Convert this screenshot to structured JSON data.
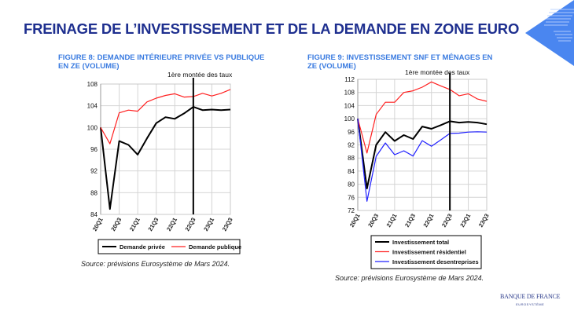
{
  "slide": {
    "title": "FREINAGE DE L’INVESTISSEMENT ET DE LA DEMANDE EN ZONE EURO",
    "logo_text": "BANQUE DE FRANCE",
    "logo_subtext": "EUROSYSTÈME",
    "accent_color": "#4a86f0"
  },
  "chart_data": [
    {
      "type": "line",
      "title": "FIGURE 8: DEMANDE INTÉRIEURE PRIVÉE VS PUBLIQUE EN ZE (VOLUME)",
      "annotation": "1ère montée des taux",
      "annotation_sup": "ère",
      "annotation_at": "22Q3",
      "source": "Source: prévisions Eurosystème de Mars 2024.",
      "x": [
        "20Q1",
        "20Q2",
        "20Q3",
        "20Q4",
        "21Q1",
        "21Q2",
        "21Q3",
        "21Q4",
        "22Q1",
        "22Q2",
        "22Q3",
        "22Q4",
        "23Q1",
        "23Q2",
        "23Q3"
      ],
      "x_tick_labels": [
        "20Q1",
        "20Q3",
        "21Q1",
        "21Q3",
        "22Q1",
        "22Q3",
        "23Q1",
        "23Q3"
      ],
      "ylim": [
        84,
        108
      ],
      "y_ticks": [
        84,
        88,
        92,
        96,
        100,
        104,
        108
      ],
      "grid": true,
      "legend_position": "bottom",
      "series": [
        {
          "name": "Demande privée",
          "color": "#000000",
          "values": [
            100,
            85,
            97.5,
            96.8,
            95,
            98,
            100.8,
            101.9,
            101.6,
            102.6,
            103.8,
            103.2,
            103.3,
            103.2,
            103.3
          ]
        },
        {
          "name": "Demande publique",
          "color": "#ff2020",
          "values": [
            100,
            97,
            102.7,
            103.2,
            103,
            104.7,
            105.4,
            105.9,
            106.2,
            105.6,
            105.7,
            106.3,
            105.8,
            106.3,
            107
          ]
        }
      ]
    },
    {
      "type": "line",
      "title": "FIGURE 9: INVESTISSEMENT SNF ET MÉNAGES EN ZE (VOLUME)",
      "annotation": "1ère montée des taux",
      "annotation_at": "22Q3",
      "source": "Source: prévisions Eurosystème de Mars 2024.",
      "x": [
        "20Q1",
        "20Q2",
        "20Q3",
        "20Q4",
        "21Q1",
        "21Q2",
        "21Q3",
        "21Q4",
        "22Q1",
        "22Q2",
        "22Q3",
        "22Q4",
        "23Q1",
        "23Q2",
        "23Q3"
      ],
      "x_tick_labels": [
        "20Q1",
        "20Q3",
        "21Q1",
        "21Q3",
        "22Q1",
        "22Q3",
        "23Q1",
        "23Q3"
      ],
      "ylim": [
        72,
        112
      ],
      "y_ticks": [
        72,
        76,
        80,
        84,
        88,
        92,
        96,
        100,
        104,
        108,
        112
      ],
      "grid": true,
      "legend_position": "bottom",
      "series": [
        {
          "name": "Investissement total",
          "color": "#000000",
          "values": [
            100,
            78.7,
            92,
            95.9,
            93.2,
            95,
            93.8,
            97.6,
            96.9,
            98,
            99.2,
            98.8,
            99,
            98.8,
            98.3
          ]
        },
        {
          "name": "Investissement résidentiel",
          "color": "#ff2020",
          "values": [
            100,
            89.5,
            101.3,
            105,
            105,
            108,
            108.5,
            109.6,
            111.2,
            110,
            108.9,
            107,
            107.6,
            106,
            105.3
          ]
        },
        {
          "name": "Investissement desentreprises",
          "color": "#2020ff",
          "values": [
            100,
            74.8,
            88.5,
            92.6,
            89,
            90.2,
            88.6,
            93.3,
            91.6,
            93.5,
            95.5,
            95.6,
            95.9,
            96,
            95.9
          ]
        }
      ]
    }
  ]
}
